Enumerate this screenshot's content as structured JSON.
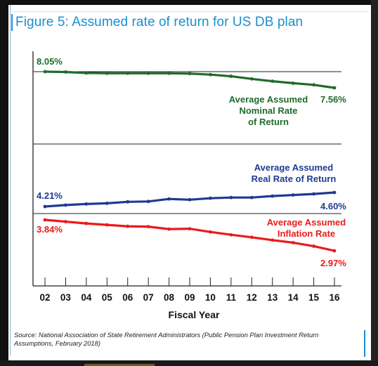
{
  "title": "Figure 5: Assumed rate of return for US DB plan",
  "source": "Source: National Association of State Retirement Administrators (Public Pension Plan Investment Return Assumptions, February 2018)",
  "chart_data": {
    "type": "line",
    "x": [
      "02",
      "03",
      "04",
      "05",
      "06",
      "07",
      "08",
      "09",
      "10",
      "11",
      "12",
      "13",
      "14",
      "15",
      "16"
    ],
    "xlabel": "Fiscal Year",
    "grid": false,
    "series": [
      {
        "name": "Average Assumed Nominal Rate of Return",
        "label_lines": [
          "Average Assumed",
          "Nominal Rate",
          "of Return"
        ],
        "color": "#1f6b2c",
        "start_label": "8.05%",
        "end_label": "7.56%",
        "values": [
          8.05,
          8.04,
          8.01,
          8.0,
          8.0,
          8.0,
          8.0,
          7.99,
          7.96,
          7.91,
          7.83,
          7.76,
          7.7,
          7.65,
          7.56
        ]
      },
      {
        "name": "Average Assumed Real Rate of Return",
        "label_lines": [
          "Average Assumed",
          "Real Rate of Return"
        ],
        "color": "#1f3a93",
        "start_label": "4.21%",
        "end_label": "4.60%",
        "values": [
          4.21,
          4.25,
          4.28,
          4.3,
          4.34,
          4.35,
          4.42,
          4.4,
          4.44,
          4.46,
          4.46,
          4.5,
          4.53,
          4.56,
          4.6
        ]
      },
      {
        "name": "Average Assumed Inflation Rate",
        "label_lines": [
          "Average Assumed",
          "Inflation Rate"
        ],
        "color": "#ea1b1b",
        "start_label": "3.84%",
        "end_label": "2.97%",
        "values": [
          3.84,
          3.79,
          3.74,
          3.7,
          3.66,
          3.65,
          3.58,
          3.59,
          3.5,
          3.42,
          3.35,
          3.27,
          3.2,
          3.1,
          2.97
        ]
      }
    ]
  }
}
